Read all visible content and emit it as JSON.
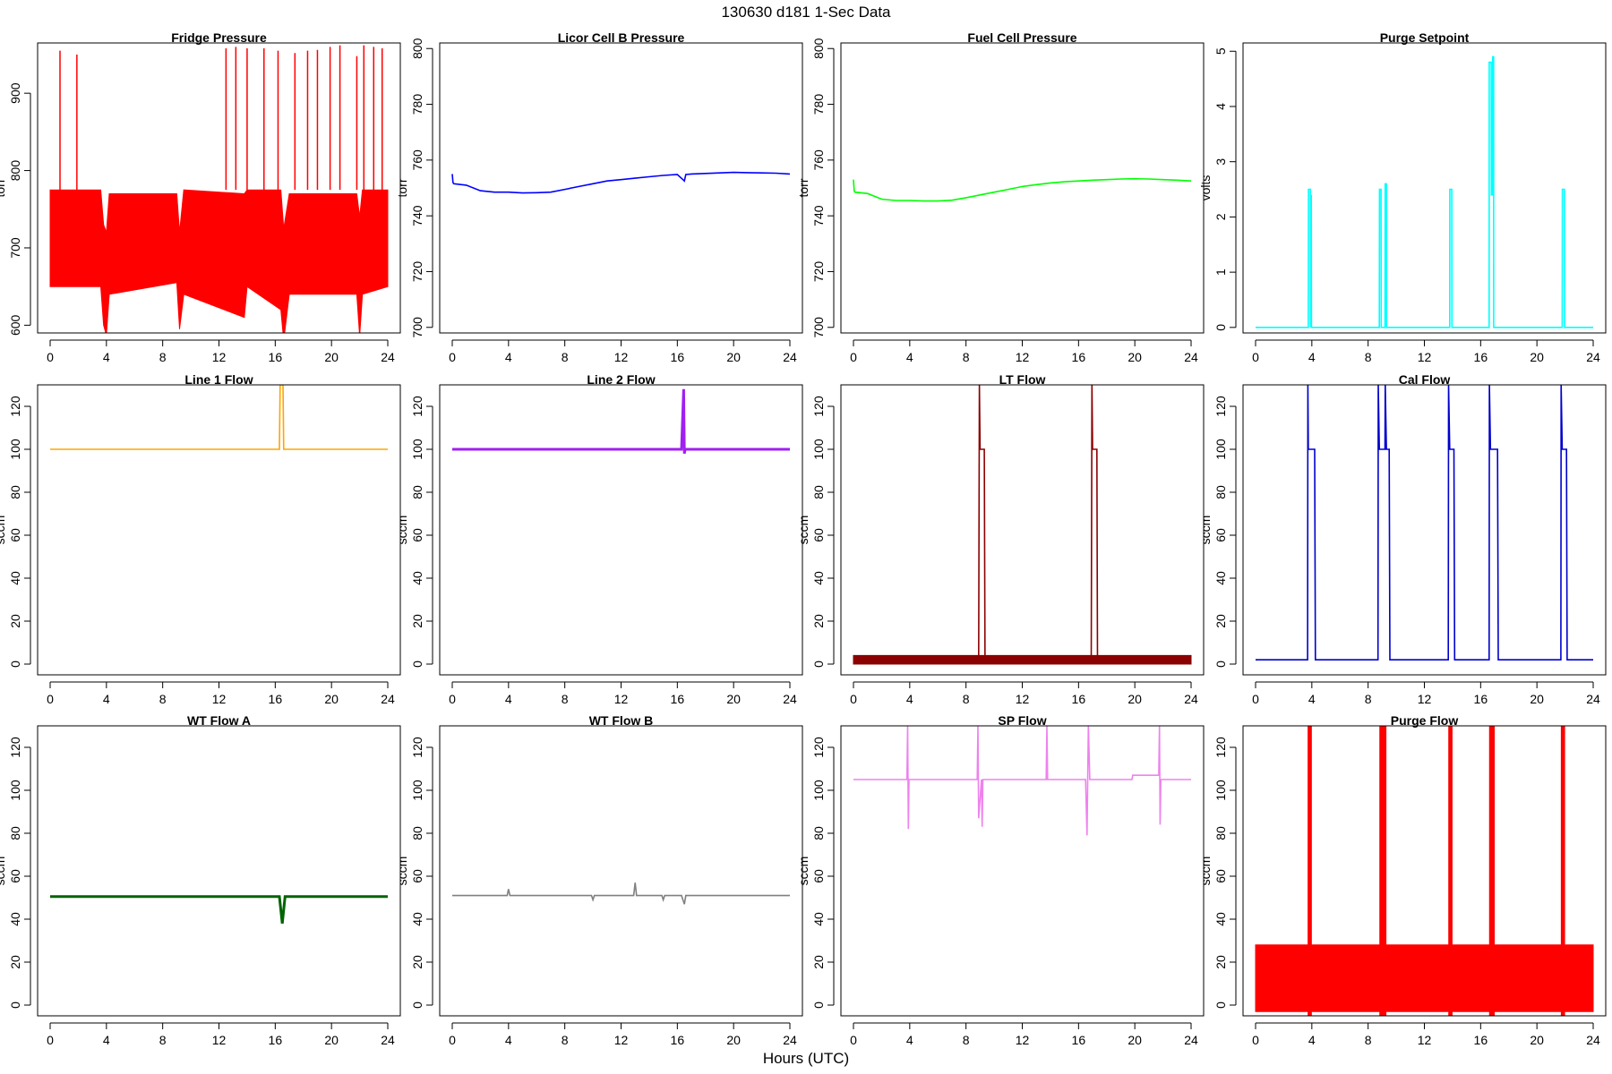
{
  "figure": {
    "title": "130630    d181    1-Sec Data",
    "xlabel": "Hours (UTC)"
  },
  "chart_data": [
    {
      "type": "line",
      "title": "Fridge Pressure",
      "ylabel": "torr",
      "color": "#ff0000",
      "ylim": [
        590,
        965
      ],
      "xlim": [
        0,
        24
      ],
      "yticks": [
        600,
        700,
        800,
        900
      ],
      "xticks": [
        0,
        4,
        8,
        12,
        16,
        20,
        24
      ],
      "band": {
        "x": [
          0,
          3.6,
          3.8,
          4.0,
          4.2,
          9.0,
          9.2,
          9.5,
          13.8,
          14.0,
          16.4,
          16.6,
          17.0,
          21.8,
          22.0,
          22.2,
          24
        ],
        "low": [
          650,
          650,
          600,
          587,
          640,
          655,
          595,
          640,
          610,
          650,
          620,
          580,
          640,
          640,
          586,
          640,
          650
        ],
        "high": [
          775,
          775,
          730,
          720,
          770,
          770,
          720,
          775,
          770,
          775,
          775,
          725,
          770,
          770,
          740,
          775,
          775
        ]
      },
      "spikes": [
        [
          0.7,
          955
        ],
        [
          1.9,
          950
        ],
        [
          12.5,
          958
        ],
        [
          13.2,
          960
        ],
        [
          14.0,
          958
        ],
        [
          15.2,
          958
        ],
        [
          16.2,
          955
        ],
        [
          17.4,
          952
        ],
        [
          18.3,
          955
        ],
        [
          19.0,
          956
        ],
        [
          19.9,
          960
        ],
        [
          20.6,
          962
        ],
        [
          21.8,
          948
        ],
        [
          22.3,
          962
        ],
        [
          23.0,
          960
        ],
        [
          23.6,
          958
        ]
      ]
    },
    {
      "type": "line",
      "title": "Licor Cell B Pressure",
      "ylabel": "torr",
      "color": "#0000ff",
      "ylim": [
        698,
        802
      ],
      "xlim": [
        0,
        24
      ],
      "yticks": [
        700,
        720,
        740,
        760,
        780,
        800
      ],
      "xticks": [
        0,
        4,
        8,
        12,
        16,
        20,
        24
      ],
      "x": [
        0,
        0.05,
        0.1,
        1,
        2,
        3,
        4,
        5,
        6,
        7,
        8,
        9,
        10,
        11,
        12,
        13,
        14,
        15,
        16,
        16.4,
        16.5,
        16.6,
        17,
        18,
        19,
        20,
        21,
        22,
        23,
        24
      ],
      "y": [
        755,
        752,
        751.5,
        751,
        749,
        748.5,
        748.5,
        748.2,
        748.3,
        748.5,
        749.5,
        750.5,
        751.5,
        752.5,
        753,
        753.5,
        754,
        754.5,
        754.8,
        753,
        752.5,
        754.8,
        755,
        755.2,
        755.4,
        755.6,
        755.5,
        755.4,
        755.3,
        755
      ]
    },
    {
      "type": "line",
      "title": "Fuel Cell Pressure",
      "ylabel": "torr",
      "color": "#00ff00",
      "ylim": [
        698,
        802
      ],
      "xlim": [
        0,
        24
      ],
      "yticks": [
        700,
        720,
        740,
        760,
        780,
        800
      ],
      "xticks": [
        0,
        4,
        8,
        12,
        16,
        20,
        24
      ],
      "x": [
        0,
        0.05,
        0.1,
        1,
        2,
        3,
        4,
        5,
        6,
        7,
        8,
        9,
        10,
        11,
        12,
        13,
        14,
        15,
        16,
        17,
        18,
        19,
        20,
        21,
        22,
        23,
        24
      ],
      "y": [
        753,
        749,
        748.5,
        748,
        746,
        745.5,
        745.5,
        745.3,
        745.3,
        745.6,
        746.5,
        747.5,
        748.5,
        749.5,
        750.5,
        751.2,
        751.8,
        752.2,
        752.5,
        752.8,
        753,
        753.2,
        753.3,
        753.2,
        753,
        752.8,
        752.5
      ]
    },
    {
      "type": "line",
      "title": "Purge Setpoint",
      "ylabel": "volts",
      "color": "#00ffff",
      "ylim": [
        -0.1,
        5.15
      ],
      "xlim": [
        0,
        24
      ],
      "yticks": [
        0,
        1,
        2,
        3,
        4,
        5
      ],
      "xticks": [
        0,
        4,
        8,
        12,
        16,
        20,
        24
      ],
      "x": [
        0,
        3.75,
        3.76,
        3.9,
        3.91,
        3.96,
        3.97,
        8.8,
        8.81,
        8.92,
        8.93,
        9.2,
        9.21,
        9.3,
        9.31,
        13.8,
        13.81,
        13.95,
        13.96,
        16.6,
        16.61,
        16.75,
        16.76,
        16.85,
        16.86,
        16.92,
        16.93,
        21.8,
        21.81,
        21.95,
        21.96,
        24
      ],
      "y": [
        0,
        0,
        2.5,
        2.5,
        0,
        2.4,
        0,
        0,
        2.5,
        2.5,
        0,
        0,
        2.6,
        2.6,
        0,
        0,
        2.5,
        2.5,
        0,
        0,
        4.8,
        4.8,
        2.4,
        2.4,
        4.9,
        4.9,
        0,
        0,
        2.5,
        2.5,
        0,
        0
      ]
    },
    {
      "type": "line",
      "title": "Line 1 Flow",
      "ylabel": "sccm",
      "color": "#ffa500",
      "ylim": [
        -5,
        130
      ],
      "xlim": [
        0,
        24
      ],
      "yticks": [
        0,
        20,
        40,
        60,
        80,
        100,
        120
      ],
      "xticks": [
        0,
        4,
        8,
        12,
        16,
        20,
        24
      ],
      "x": [
        0,
        16.3,
        16.35,
        16.55,
        16.6,
        24
      ],
      "y": [
        100,
        100,
        130,
        130,
        100,
        100
      ]
    },
    {
      "type": "line",
      "title": "Line 2 Flow",
      "ylabel": "sccm",
      "color": "#a020f0",
      "ylim": [
        -5,
        130
      ],
      "xlim": [
        0,
        24
      ],
      "yticks": [
        0,
        20,
        40,
        60,
        80,
        100,
        120
      ],
      "xticks": [
        0,
        4,
        8,
        12,
        16,
        20,
        24
      ],
      "x": [
        0,
        16.3,
        16.45,
        16.5,
        16.55,
        24
      ],
      "y": [
        100,
        100,
        128,
        98,
        100,
        100
      ]
    },
    {
      "type": "line",
      "title": "LT Flow",
      "ylabel": "sccm",
      "color": "#8b0000",
      "ylim": [
        -5,
        130
      ],
      "xlim": [
        0,
        24
      ],
      "yticks": [
        0,
        20,
        40,
        60,
        80,
        100,
        120
      ],
      "xticks": [
        0,
        4,
        8,
        12,
        16,
        20,
        24
      ],
      "band": {
        "x": [
          0,
          24
        ],
        "low": [
          0,
          0
        ],
        "high": [
          4,
          4
        ]
      },
      "x": [
        0,
        8.9,
        8.95,
        9.0,
        9.3,
        9.35,
        9.4,
        16.9,
        16.95,
        17.0,
        17.3,
        17.35,
        17.4,
        24
      ],
      "y": [
        2,
        2,
        130,
        100,
        100,
        0,
        2,
        2,
        130,
        100,
        100,
        0,
        2,
        2
      ]
    },
    {
      "type": "line",
      "title": "Cal Flow",
      "ylabel": "sccm",
      "color": "#0000cd",
      "ylim": [
        -5,
        130
      ],
      "xlim": [
        0,
        24
      ],
      "yticks": [
        0,
        20,
        40,
        60,
        80,
        100,
        120
      ],
      "xticks": [
        0,
        4,
        8,
        12,
        16,
        20,
        24
      ],
      "x": [
        0,
        3.7,
        3.72,
        3.75,
        4.2,
        4.25,
        8.7,
        8.72,
        8.8,
        9.2,
        9.22,
        9.3,
        9.5,
        9.55,
        13.7,
        13.72,
        13.8,
        14.1,
        14.15,
        16.6,
        16.62,
        16.7,
        17.2,
        17.25,
        21.7,
        21.72,
        21.8,
        22.1,
        22.15,
        24
      ],
      "y": [
        2,
        2,
        130,
        100,
        100,
        2,
        2,
        130,
        100,
        100,
        130,
        100,
        100,
        2,
        2,
        130,
        100,
        100,
        2,
        2,
        130,
        100,
        100,
        2,
        2,
        130,
        100,
        100,
        2,
        2
      ]
    },
    {
      "type": "line",
      "title": "WT Flow A",
      "ylabel": "sccm",
      "color": "#006400",
      "ylim": [
        -5,
        130
      ],
      "xlim": [
        0,
        24
      ],
      "yticks": [
        0,
        20,
        40,
        60,
        80,
        100,
        120
      ],
      "xticks": [
        0,
        4,
        8,
        12,
        16,
        20,
        24
      ],
      "x": [
        0,
        16.3,
        16.5,
        16.7,
        24
      ],
      "y": [
        50.5,
        50.5,
        38,
        50.5,
        50.5
      ]
    },
    {
      "type": "line",
      "title": "WT Flow B",
      "ylabel": "sccm",
      "color": "#808080",
      "ylim": [
        -5,
        130
      ],
      "xlim": [
        0,
        24
      ],
      "yticks": [
        0,
        20,
        40,
        60,
        80,
        100,
        120
      ],
      "xticks": [
        0,
        4,
        8,
        12,
        16,
        20,
        24
      ],
      "x": [
        0,
        3.9,
        4.0,
        4.1,
        9.9,
        10.0,
        10.1,
        12.9,
        13.0,
        13.1,
        14.9,
        15.0,
        15.1,
        16.3,
        16.5,
        16.6,
        24
      ],
      "y": [
        51,
        51,
        54,
        51,
        51,
        49,
        51,
        51,
        57,
        51,
        51,
        49,
        51,
        51,
        47,
        51,
        51
      ]
    },
    {
      "type": "line",
      "title": "SP Flow",
      "ylabel": "sccm",
      "color": "#ee82ee",
      "ylim": [
        -5,
        130
      ],
      "xlim": [
        0,
        24
      ],
      "yticks": [
        0,
        20,
        40,
        60,
        80,
        100,
        120
      ],
      "xticks": [
        0,
        4,
        8,
        12,
        16,
        20,
        24
      ],
      "x": [
        0,
        3.8,
        3.85,
        3.9,
        3.95,
        4.0,
        8.8,
        8.85,
        8.9,
        9.1,
        9.15,
        9.2,
        13.7,
        13.75,
        13.8,
        16.5,
        16.6,
        16.7,
        16.8,
        19.8,
        19.85,
        21.7,
        21.75,
        21.8,
        21.85,
        24
      ],
      "y": [
        105,
        105,
        130,
        82,
        105,
        105,
        105,
        130,
        87,
        105,
        83,
        105,
        105,
        130,
        105,
        105,
        79,
        130,
        105,
        105,
        107,
        107,
        130,
        84,
        105,
        105
      ]
    },
    {
      "type": "line",
      "title": "Purge Flow",
      "ylabel": "sccm",
      "color": "#ff0000",
      "ylim": [
        -5,
        130
      ],
      "xlim": [
        0,
        24
      ],
      "yticks": [
        0,
        20,
        40,
        60,
        80,
        100,
        120
      ],
      "xticks": [
        0,
        4,
        8,
        12,
        16,
        20,
        24
      ],
      "band": {
        "x": [
          0,
          24
        ],
        "low": [
          -3,
          -3
        ],
        "high": [
          28,
          28
        ]
      },
      "blocks": [
        [
          3.7,
          4.0
        ],
        [
          8.8,
          9.3
        ],
        [
          13.7,
          14.0
        ],
        [
          16.6,
          17.0
        ],
        [
          21.7,
          22.0
        ]
      ]
    }
  ]
}
